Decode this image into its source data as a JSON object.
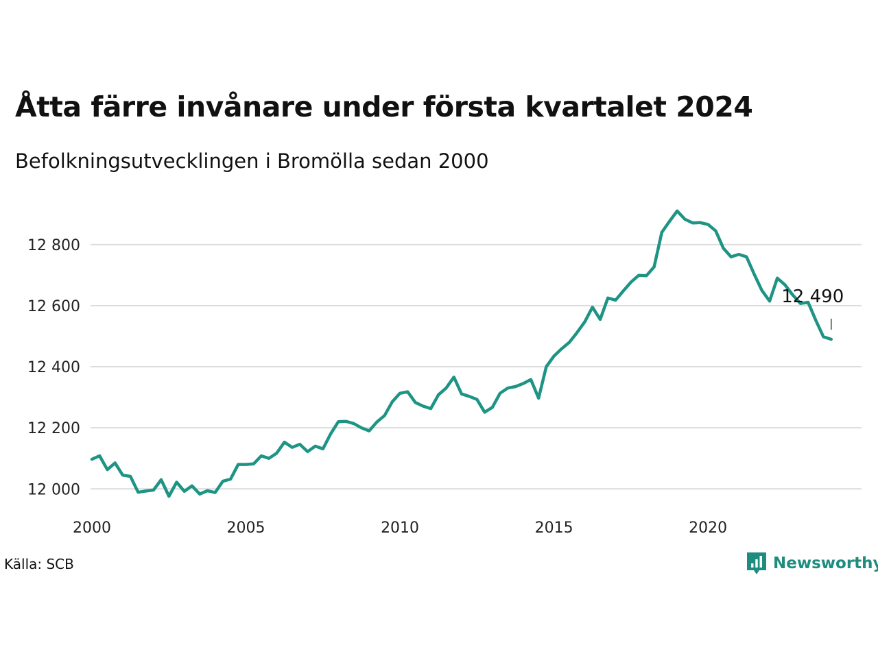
{
  "header": {
    "title": "Åtta färre invånare under första kvartalet 2024",
    "subtitle": "Befolkningsutvecklingen i Bromölla sedan 2000"
  },
  "footer": {
    "source": "Källa: SCB",
    "brand": "Newsworthy",
    "brand_icon": "bar-chart-badge-icon"
  },
  "colors": {
    "line": "#1e9484",
    "grid": "#dcdcdc",
    "brand": "#1e8c7e"
  },
  "chart_data": {
    "type": "line",
    "title": "Åtta färre invånare under första kvartalet 2024",
    "subtitle": "Befolkningsutvecklingen i Bromölla sedan 2000",
    "xlabel": "",
    "ylabel": "",
    "xlim": [
      2000,
      2024.25
    ],
    "ylim": [
      11940,
      12950
    ],
    "x_ticks": [
      2000,
      2005,
      2010,
      2015,
      2020
    ],
    "x_tick_labels": [
      "2000",
      "2005",
      "2010",
      "2015",
      "2020"
    ],
    "y_ticks": [
      12000,
      12200,
      12400,
      12600,
      12800
    ],
    "y_tick_labels": [
      "12 000",
      "12 200",
      "12 400",
      "12 600",
      "12 800"
    ],
    "grid": true,
    "annotation": {
      "x": 2024.0,
      "y": 12490,
      "label": "12 490"
    },
    "series": [
      {
        "x": [
          2000.0,
          2000.25,
          2000.5,
          2000.75,
          2001.0,
          2001.25,
          2001.5,
          2001.75,
          2002.0,
          2002.25,
          2002.5,
          2002.75,
          2003.0,
          2003.25,
          2003.5,
          2003.75,
          2004.0,
          2004.25,
          2004.5,
          2004.75,
          2005.0,
          2005.25,
          2005.5,
          2005.75,
          2006.0,
          2006.25,
          2006.5,
          2006.75,
          2007.0,
          2007.25,
          2007.5,
          2007.75,
          2008.0,
          2008.25,
          2008.5,
          2008.75,
          2009.0,
          2009.25,
          2009.5,
          2009.75,
          2010.0,
          2010.25,
          2010.5,
          2010.75,
          2011.0,
          2011.25,
          2011.5,
          2011.75,
          2012.0,
          2012.25,
          2012.5,
          2012.75,
          2013.0,
          2013.25,
          2013.5,
          2013.75,
          2014.0,
          2014.25,
          2014.5,
          2014.75,
          2015.0,
          2015.25,
          2015.5,
          2015.75,
          2016.0,
          2016.25,
          2016.5,
          2016.75,
          2017.0,
          2017.25,
          2017.5,
          2017.75,
          2018.0,
          2018.25,
          2018.5,
          2018.75,
          2019.0,
          2019.25,
          2019.5,
          2019.75,
          2020.0,
          2020.25,
          2020.5,
          2020.75,
          2021.0,
          2021.25,
          2021.5,
          2021.75,
          2022.0,
          2022.25,
          2022.5,
          2022.75,
          2023.0,
          2023.25,
          2023.5,
          2023.75,
          2024.0
        ],
        "values": [
          12097,
          12108,
          12063,
          12085,
          12045,
          12041,
          11989,
          11993,
          11996,
          12030,
          11976,
          12022,
          11992,
          12010,
          11983,
          11994,
          11988,
          12025,
          12032,
          12080,
          12080,
          12082,
          12108,
          12100,
          12117,
          12153,
          12136,
          12146,
          12122,
          12140,
          12131,
          12180,
          12220,
          12221,
          12214,
          12200,
          12190,
          12219,
          12240,
          12285,
          12313,
          12318,
          12283,
          12271,
          12263,
          12308,
          12330,
          12366,
          12311,
          12303,
          12293,
          12251,
          12267,
          12313,
          12330,
          12335,
          12345,
          12358,
          12297,
          12400,
          12435,
          12459,
          12480,
          12512,
          12547,
          12595,
          12555,
          12625,
          12618,
          12648,
          12677,
          12699,
          12698,
          12727,
          12840,
          12876,
          12910,
          12883,
          12871,
          12872,
          12866,
          12845,
          12788,
          12760,
          12768,
          12760,
          12703,
          12650,
          12615,
          12690,
          12668,
          12635,
          12607,
          12611,
          12552,
          12498,
          12490
        ]
      }
    ]
  }
}
